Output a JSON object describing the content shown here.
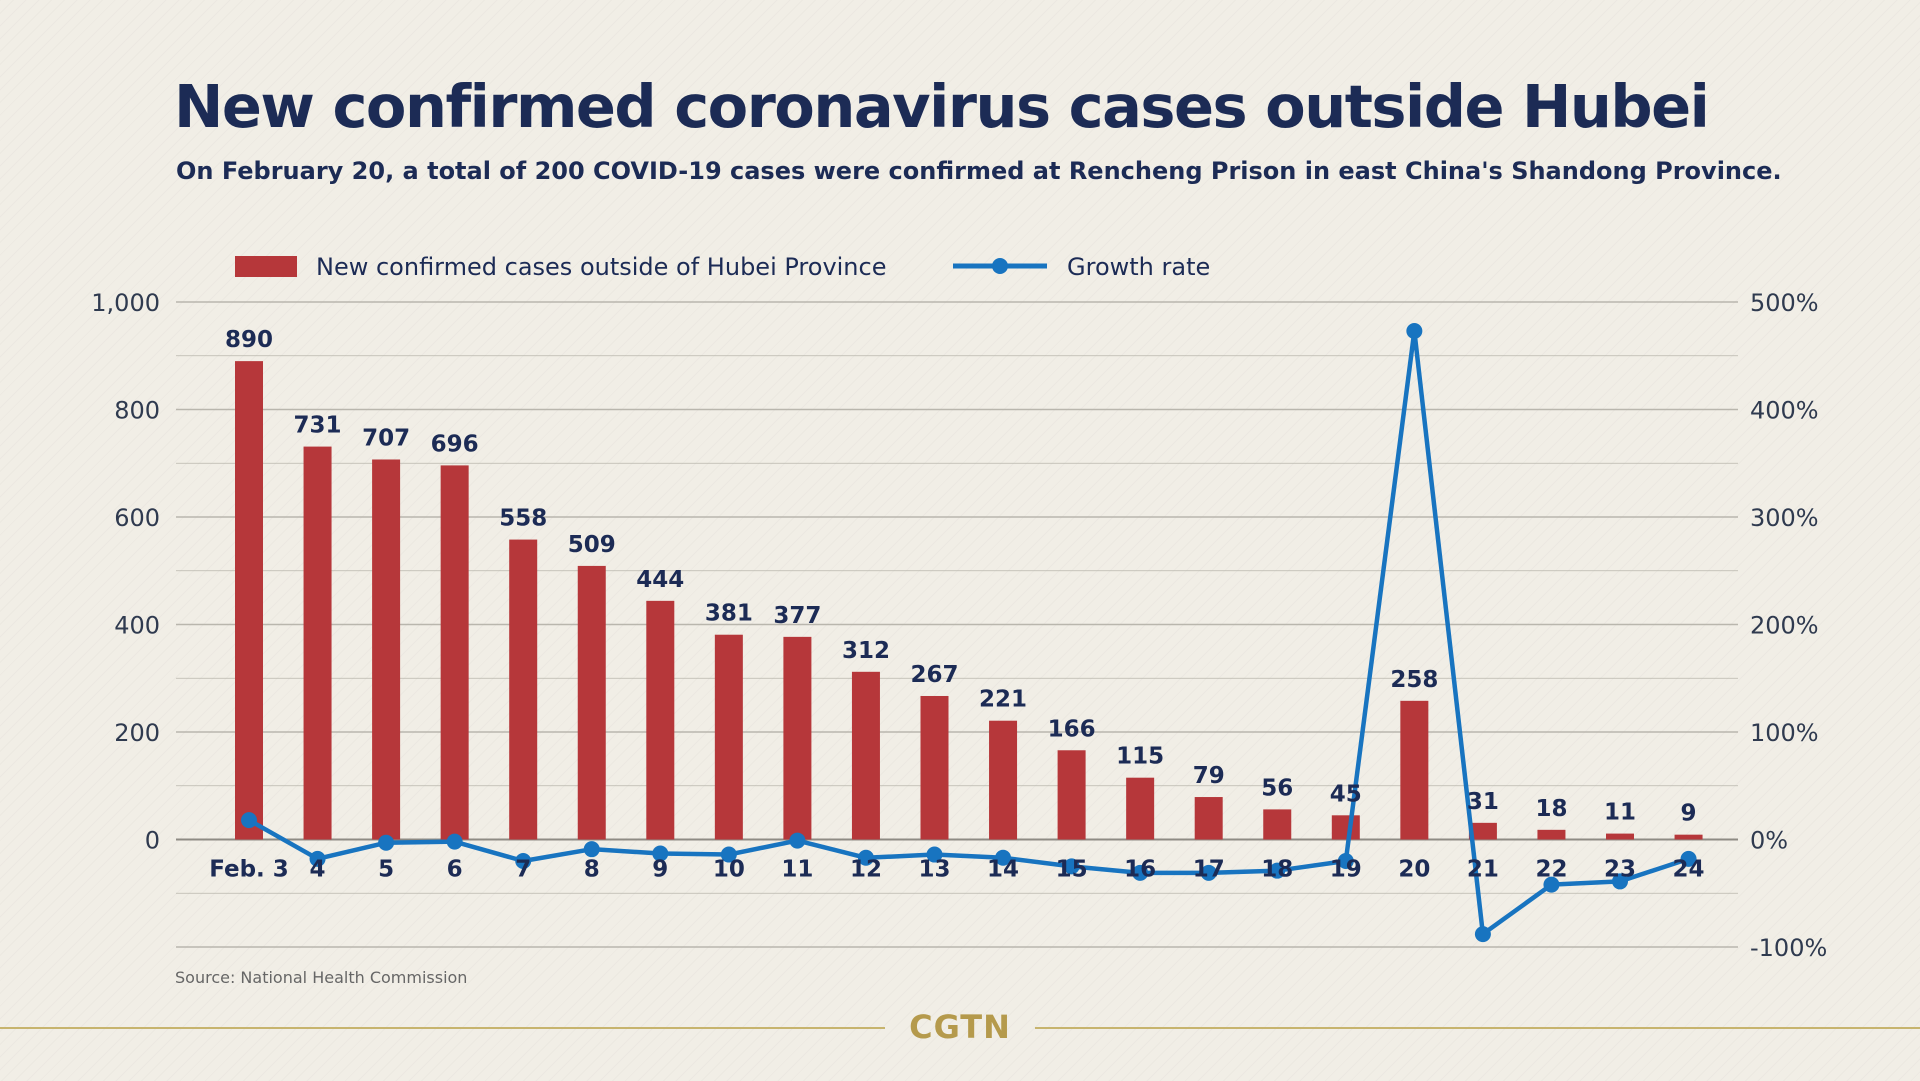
{
  "title": "New confirmed coronavirus cases outside Hubei",
  "subtitle": "On February 20, a total of 200 COVID-19 cases were confirmed at Rencheng Prison in east China's Shandong Province.",
  "source": "Source: National Health Commission",
  "brand": "CGTN",
  "colors": {
    "bar": "#b6373a",
    "line": "#1874c0",
    "text_dark": "#1c2b55",
    "axis_text": "#2f3a4f",
    "grid": "#b9b6ad",
    "brand": "#b59a4c"
  },
  "chart_data": {
    "type": "bar",
    "categories": [
      "Feb. 3",
      "4",
      "5",
      "6",
      "7",
      "8",
      "9",
      "10",
      "11",
      "12",
      "13",
      "14",
      "15",
      "16",
      "17",
      "18",
      "19",
      "20",
      "21",
      "22",
      "23",
      "24"
    ],
    "series": [
      {
        "name": "New confirmed cases outside of Hubei Province",
        "type": "bar",
        "axis": "left",
        "values": [
          890,
          731,
          707,
          696,
          558,
          509,
          444,
          381,
          377,
          312,
          267,
          221,
          166,
          115,
          79,
          56,
          45,
          258,
          31,
          18,
          11,
          9
        ],
        "labels": [
          "890",
          "731",
          "707",
          "696",
          "558",
          "509",
          "444",
          "381",
          "377",
          "312",
          "267",
          "221",
          "166",
          "115",
          "79",
          "56",
          "45",
          "258",
          "31",
          "18",
          "11",
          "9"
        ]
      },
      {
        "name": "Growth rate",
        "type": "line",
        "axis": "right",
        "unit": "%",
        "values": [
          18,
          -18,
          -3,
          -2,
          -20,
          -9,
          -13,
          -14,
          -1,
          -17,
          -14,
          -17,
          -25,
          -31,
          -31,
          -29,
          -20,
          473,
          -88,
          -42,
          -39,
          -18
        ]
      }
    ],
    "y_left": {
      "ylim": [
        -200,
        1000
      ],
      "ticks": [
        0,
        200,
        400,
        600,
        800,
        1000
      ],
      "tick_labels": [
        "0",
        "200",
        "400",
        "600",
        "800",
        "1,000"
      ]
    },
    "y_right": {
      "ylim": [
        -100,
        500
      ],
      "ticks": [
        -100,
        0,
        100,
        200,
        300,
        400,
        500
      ],
      "tick_labels": [
        "-100%",
        "0%",
        "100%",
        "200%",
        "300%",
        "400%",
        "500%"
      ]
    },
    "grid": true,
    "legend_position": "top-left"
  }
}
